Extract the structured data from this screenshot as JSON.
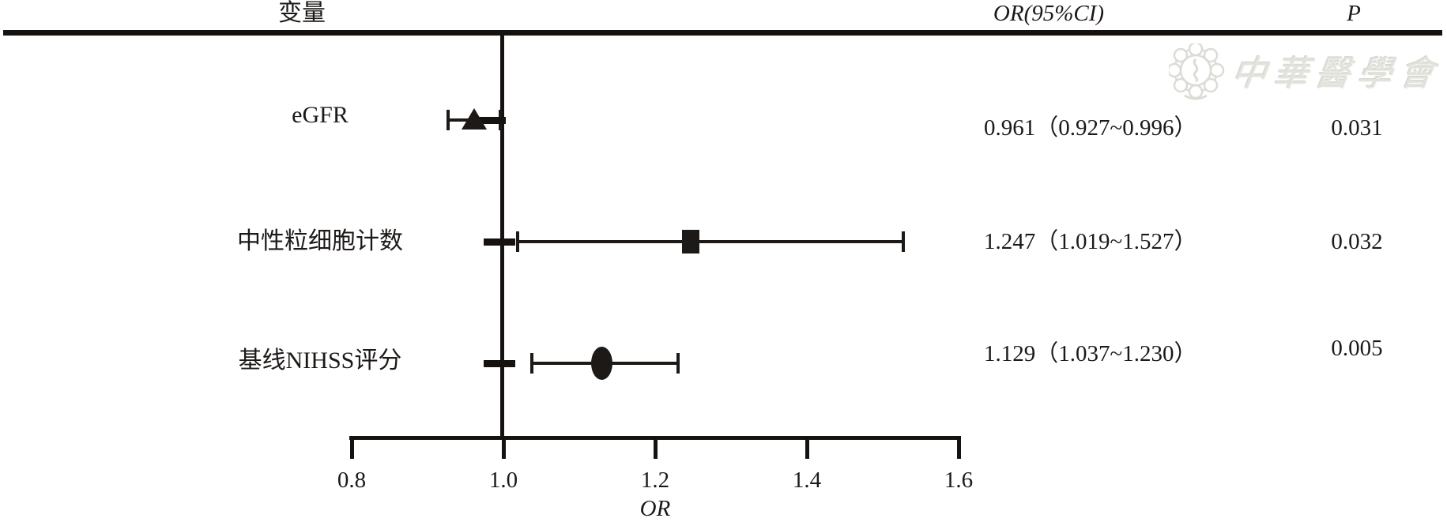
{
  "header": {
    "variable_header": "变量",
    "or_ci_header": "OR(95%CI)",
    "p_header": "P"
  },
  "watermark": {
    "text": "中華醫學會"
  },
  "colors": {
    "ink": "#1c1917",
    "watermark_gray": "#dcdcd6"
  },
  "chart_data": {
    "type": "forest",
    "title": "",
    "xlabel": "OR",
    "xlim": [
      0.8,
      1.6
    ],
    "x_ticks": [
      0.8,
      1.0,
      1.2,
      1.4,
      1.6
    ],
    "x_tick_labels": [
      "0.8",
      "1.0",
      "1.2",
      "1.4",
      "1.6"
    ],
    "reference_line": 1.0,
    "grid": false,
    "columns": [
      "变量",
      "OR(95%CI)",
      "P"
    ],
    "rows": [
      {
        "label": "eGFR",
        "marker": "triangle",
        "or": 0.961,
        "ci_low": 0.927,
        "ci_high": 0.996,
        "or_text": "0.961（0.927~0.996）",
        "p": "0.031"
      },
      {
        "label": "中性粒细胞计数",
        "marker": "square",
        "or": 1.247,
        "ci_low": 1.019,
        "ci_high": 1.527,
        "or_text": "1.247（1.019~1.527）",
        "p": "0.032"
      },
      {
        "label": "基线NIHSS评分",
        "marker": "circle",
        "or": 1.129,
        "ci_low": 1.037,
        "ci_high": 1.23,
        "or_text": "1.129（1.037~1.230）",
        "p": "0.005"
      }
    ]
  }
}
